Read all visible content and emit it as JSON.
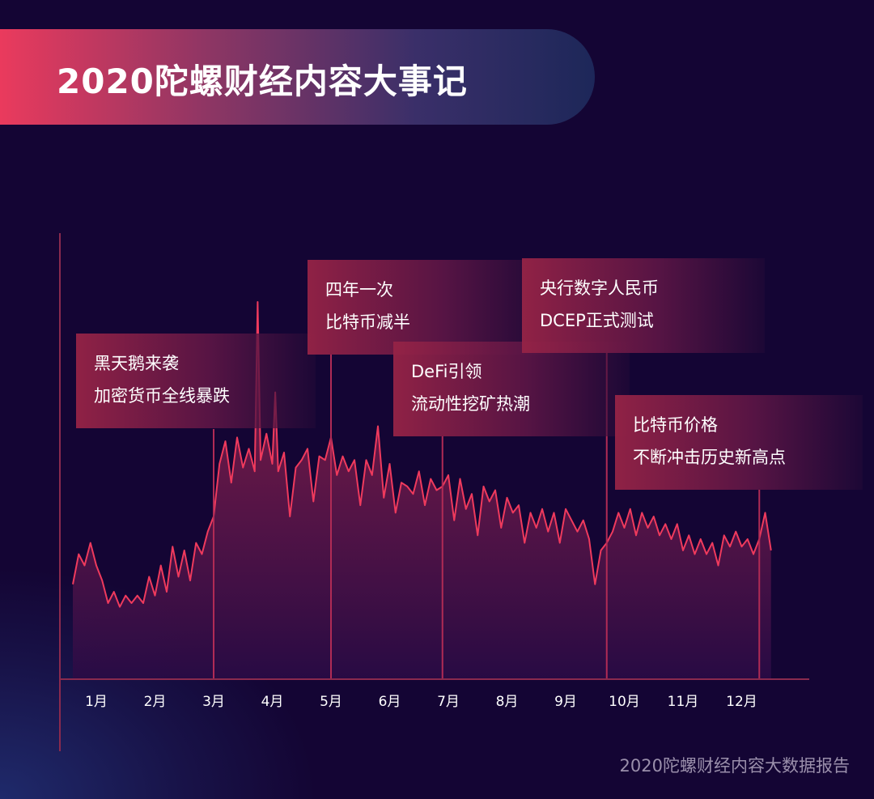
{
  "title": "2020陀螺财经内容大事记",
  "footer": "2020陀螺财经内容大数据报告",
  "colors": {
    "line": "#ef3a5d",
    "axis": "#8a2a4e",
    "marker": "#b02b55",
    "background": "#140534"
  },
  "events": [
    {
      "month_position": 3.0,
      "lines": [
        "黑天鹅来袭",
        "加密货币全线暴跌"
      ]
    },
    {
      "month_position": 5.0,
      "lines": [
        "四年一次",
        "比特币减半"
      ]
    },
    {
      "month_position": 6.9,
      "lines": [
        "DeFi引领",
        "流动性挖矿热潮"
      ]
    },
    {
      "month_position": 9.7,
      "lines": [
        "央行数字人民币",
        "DCEP正式测试"
      ]
    },
    {
      "month_position": 12.3,
      "lines": [
        "比特币价格",
        "不断冲击历史新高点"
      ]
    }
  ],
  "chart_data": {
    "type": "area",
    "title": "",
    "xlabel": "",
    "ylabel": "",
    "grid": false,
    "x_tick_labels": [
      "1月",
      "2月",
      "3月",
      "4月",
      "5月",
      "6月",
      "7月",
      "8月",
      "9月",
      "10月",
      "11月",
      "12月"
    ],
    "x_range": [
      0.6,
      13.1
    ],
    "y_range": [
      0,
      100
    ],
    "series": [
      {
        "values": [
          {
            "x": 0.6,
            "y": 25
          },
          {
            "x": 0.7,
            "y": 33
          },
          {
            "x": 0.8,
            "y": 30
          },
          {
            "x": 0.9,
            "y": 36
          },
          {
            "x": 1.0,
            "y": 30
          },
          {
            "x": 1.1,
            "y": 26
          },
          {
            "x": 1.2,
            "y": 20
          },
          {
            "x": 1.3,
            "y": 23
          },
          {
            "x": 1.4,
            "y": 19
          },
          {
            "x": 1.5,
            "y": 22
          },
          {
            "x": 1.6,
            "y": 20
          },
          {
            "x": 1.7,
            "y": 22
          },
          {
            "x": 1.8,
            "y": 20
          },
          {
            "x": 1.9,
            "y": 27
          },
          {
            "x": 2.0,
            "y": 22
          },
          {
            "x": 2.1,
            "y": 30
          },
          {
            "x": 2.2,
            "y": 23
          },
          {
            "x": 2.3,
            "y": 35
          },
          {
            "x": 2.4,
            "y": 27
          },
          {
            "x": 2.5,
            "y": 34
          },
          {
            "x": 2.6,
            "y": 26
          },
          {
            "x": 2.7,
            "y": 36
          },
          {
            "x": 2.8,
            "y": 33
          },
          {
            "x": 2.9,
            "y": 39
          },
          {
            "x": 3.0,
            "y": 43
          },
          {
            "x": 3.1,
            "y": 57
          },
          {
            "x": 3.2,
            "y": 63
          },
          {
            "x": 3.3,
            "y": 52
          },
          {
            "x": 3.4,
            "y": 64
          },
          {
            "x": 3.5,
            "y": 56
          },
          {
            "x": 3.6,
            "y": 61
          },
          {
            "x": 3.7,
            "y": 55
          },
          {
            "x": 3.75,
            "y": 100
          },
          {
            "x": 3.8,
            "y": 58
          },
          {
            "x": 3.9,
            "y": 65
          },
          {
            "x": 4.0,
            "y": 57
          },
          {
            "x": 4.05,
            "y": 76
          },
          {
            "x": 4.1,
            "y": 55
          },
          {
            "x": 4.2,
            "y": 60
          },
          {
            "x": 4.3,
            "y": 43
          },
          {
            "x": 4.4,
            "y": 56
          },
          {
            "x": 4.5,
            "y": 58
          },
          {
            "x": 4.6,
            "y": 61
          },
          {
            "x": 4.7,
            "y": 47
          },
          {
            "x": 4.8,
            "y": 59
          },
          {
            "x": 4.9,
            "y": 58
          },
          {
            "x": 5.0,
            "y": 64
          },
          {
            "x": 5.1,
            "y": 54
          },
          {
            "x": 5.2,
            "y": 59
          },
          {
            "x": 5.3,
            "y": 55
          },
          {
            "x": 5.4,
            "y": 58
          },
          {
            "x": 5.5,
            "y": 46
          },
          {
            "x": 5.6,
            "y": 58
          },
          {
            "x": 5.7,
            "y": 54
          },
          {
            "x": 5.8,
            "y": 67
          },
          {
            "x": 5.9,
            "y": 48
          },
          {
            "x": 6.0,
            "y": 57
          },
          {
            "x": 6.1,
            "y": 44
          },
          {
            "x": 6.2,
            "y": 52
          },
          {
            "x": 6.3,
            "y": 51
          },
          {
            "x": 6.4,
            "y": 49
          },
          {
            "x": 6.5,
            "y": 55
          },
          {
            "x": 6.6,
            "y": 46
          },
          {
            "x": 6.7,
            "y": 53
          },
          {
            "x": 6.8,
            "y": 50
          },
          {
            "x": 6.9,
            "y": 51
          },
          {
            "x": 7.0,
            "y": 54
          },
          {
            "x": 7.1,
            "y": 42
          },
          {
            "x": 7.2,
            "y": 53
          },
          {
            "x": 7.3,
            "y": 45
          },
          {
            "x": 7.4,
            "y": 49
          },
          {
            "x": 7.5,
            "y": 38
          },
          {
            "x": 7.6,
            "y": 51
          },
          {
            "x": 7.7,
            "y": 47
          },
          {
            "x": 7.8,
            "y": 50
          },
          {
            "x": 7.9,
            "y": 40
          },
          {
            "x": 8.0,
            "y": 48
          },
          {
            "x": 8.1,
            "y": 44
          },
          {
            "x": 8.2,
            "y": 46
          },
          {
            "x": 8.3,
            "y": 36
          },
          {
            "x": 8.4,
            "y": 44
          },
          {
            "x": 8.5,
            "y": 40
          },
          {
            "x": 8.6,
            "y": 45
          },
          {
            "x": 8.7,
            "y": 39
          },
          {
            "x": 8.8,
            "y": 44
          },
          {
            "x": 8.9,
            "y": 36
          },
          {
            "x": 9.0,
            "y": 45
          },
          {
            "x": 9.1,
            "y": 42
          },
          {
            "x": 9.2,
            "y": 39
          },
          {
            "x": 9.3,
            "y": 42
          },
          {
            "x": 9.4,
            "y": 37
          },
          {
            "x": 9.5,
            "y": 25
          },
          {
            "x": 9.6,
            "y": 34
          },
          {
            "x": 9.7,
            "y": 36
          },
          {
            "x": 9.8,
            "y": 39
          },
          {
            "x": 9.9,
            "y": 44
          },
          {
            "x": 10.0,
            "y": 40
          },
          {
            "x": 10.1,
            "y": 45
          },
          {
            "x": 10.2,
            "y": 38
          },
          {
            "x": 10.3,
            "y": 44
          },
          {
            "x": 10.4,
            "y": 40
          },
          {
            "x": 10.5,
            "y": 43
          },
          {
            "x": 10.6,
            "y": 38
          },
          {
            "x": 10.7,
            "y": 41
          },
          {
            "x": 10.8,
            "y": 37
          },
          {
            "x": 10.9,
            "y": 41
          },
          {
            "x": 11.0,
            "y": 34
          },
          {
            "x": 11.1,
            "y": 38
          },
          {
            "x": 11.2,
            "y": 33
          },
          {
            "x": 11.3,
            "y": 37
          },
          {
            "x": 11.4,
            "y": 33
          },
          {
            "x": 11.5,
            "y": 36
          },
          {
            "x": 11.6,
            "y": 30
          },
          {
            "x": 11.7,
            "y": 38
          },
          {
            "x": 11.8,
            "y": 35
          },
          {
            "x": 11.9,
            "y": 39
          },
          {
            "x": 12.0,
            "y": 35
          },
          {
            "x": 12.1,
            "y": 37
          },
          {
            "x": 12.2,
            "y": 33
          },
          {
            "x": 12.3,
            "y": 37
          },
          {
            "x": 12.4,
            "y": 44
          },
          {
            "x": 12.5,
            "y": 34
          }
        ]
      }
    ]
  }
}
